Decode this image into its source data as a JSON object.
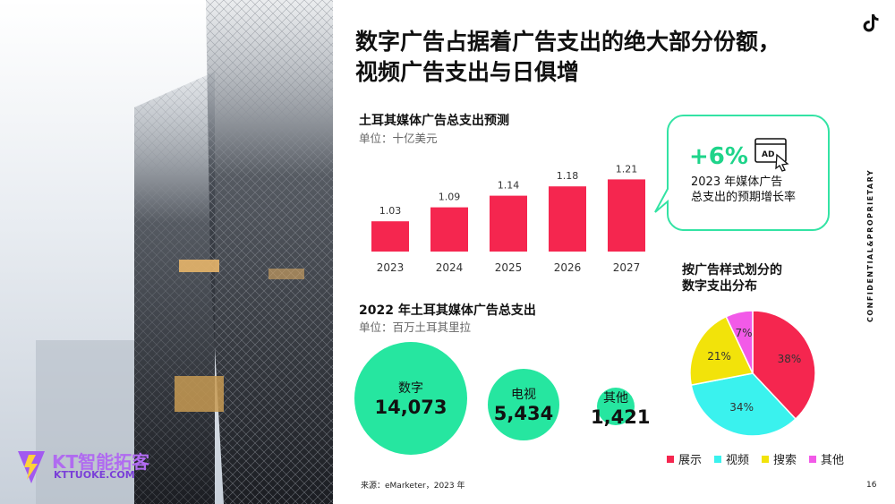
{
  "title": {
    "line1": "数字广告占据着广告支出的绝大部分份额，",
    "line2": "视频广告支出与日俱增"
  },
  "logo": {
    "main": "KT智能拓客",
    "sub": "KTTUOKE.COM"
  },
  "icons": {
    "brand": "tiktok-icon",
    "ad": "ad-click-icon"
  },
  "side_label": "CONFIDENTIAL&PROPRIETARY",
  "forecast": {
    "title": "土耳其媒体广告总支出预测",
    "unit": "单位：十亿美元"
  },
  "growth": {
    "pct": "+6%",
    "line1": "2023 年媒体广告",
    "line2": "总支出的预期增长率"
  },
  "spend2022": {
    "title": "2022 年土耳其媒体广告总支出",
    "unit": "单位：百万土耳其里拉",
    "items": [
      {
        "label": "数字",
        "value": "14,073"
      },
      {
        "label": "电视",
        "value": "5,434"
      },
      {
        "label": "其他",
        "value": "1,421"
      }
    ]
  },
  "pie_title": {
    "line1": "按广告样式划分的",
    "line2": "数字支出分布"
  },
  "source": "来源：eMarketer，2023 年",
  "page_number": "16",
  "colors": {
    "bar": "#f5264f",
    "green": "#26e6a0",
    "cyan": "#3af2ee",
    "yellow": "#f2e30a",
    "magenta": "#f25ae8"
  },
  "chart_data": [
    {
      "type": "bar",
      "title": "土耳其媒体广告总支出预测",
      "ylabel": "单位：十亿美元",
      "categories": [
        "2023",
        "2024",
        "2025",
        "2026",
        "2027"
      ],
      "values": [
        1.03,
        1.09,
        1.14,
        1.18,
        1.21
      ],
      "labels": [
        "1.03",
        "1.09",
        "1.14",
        "1.18",
        "1.21"
      ],
      "ylim": [
        0.9,
        1.25
      ],
      "grid": false
    },
    {
      "type": "pie",
      "title": "按广告样式划分的数字支出分布",
      "categories": [
        "展示",
        "视频",
        "搜索",
        "其他"
      ],
      "values": [
        38,
        34,
        21,
        7
      ],
      "labels": [
        "38%",
        "34%",
        "21%",
        "7%"
      ],
      "legend": "bottom"
    }
  ]
}
